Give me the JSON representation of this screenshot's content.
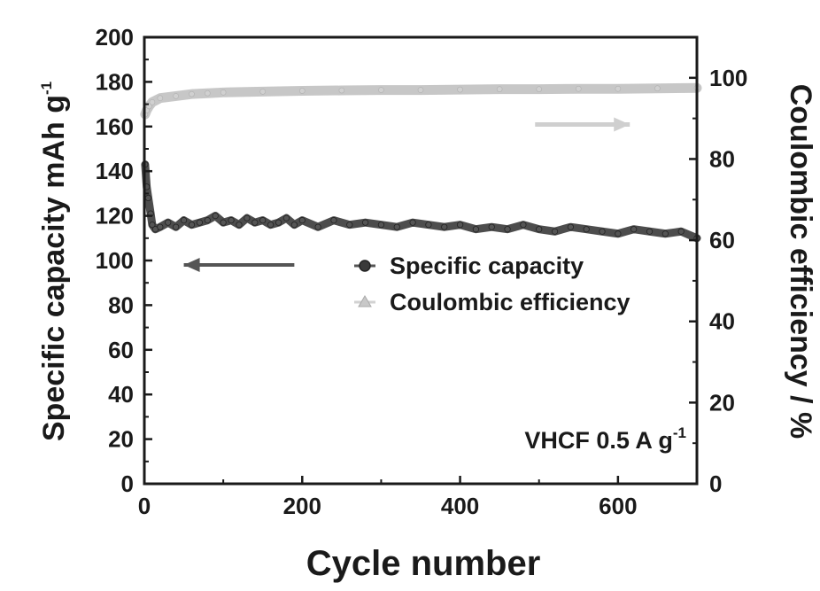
{
  "chart_data": {
    "type": "line",
    "title": "",
    "xlabel": "Cycle number",
    "ylabel": {
      "text": "Specific capacity mAh g",
      "sup": "-1"
    },
    "y2label": "Coulombic efficiency / %",
    "xlim": [
      0,
      700
    ],
    "ylim": [
      0,
      200
    ],
    "y2lim": [
      0,
      110
    ],
    "xticks": [
      0,
      200,
      400,
      600
    ],
    "yticks": [
      0,
      20,
      40,
      60,
      80,
      100,
      120,
      140,
      160,
      180,
      200
    ],
    "y2ticks": [
      0,
      20,
      40,
      60,
      80,
      100
    ],
    "grid": false,
    "legend_position": "center-right",
    "annotation": {
      "text": "VHCF   0.5 A g",
      "sup": "-1"
    },
    "series": [
      {
        "name": "Specific capacity",
        "axis": "left",
        "color": "#3a3a3a",
        "x": [
          1,
          3,
          5,
          8,
          10,
          14,
          20,
          30,
          40,
          50,
          60,
          70,
          80,
          90,
          100,
          110,
          120,
          130,
          140,
          150,
          160,
          170,
          180,
          190,
          200,
          220,
          240,
          260,
          280,
          300,
          320,
          340,
          360,
          380,
          400,
          420,
          440,
          460,
          480,
          500,
          520,
          540,
          560,
          580,
          600,
          620,
          640,
          660,
          680,
          700
        ],
        "values": [
          143,
          133,
          128,
          121,
          116,
          114,
          115,
          117,
          115,
          118,
          116,
          117,
          118,
          120,
          117,
          118,
          116,
          119,
          117,
          118,
          116,
          117,
          119,
          116,
          118,
          115,
          118,
          116,
          117,
          116,
          115,
          117,
          116,
          115,
          116,
          114,
          115,
          114,
          116,
          114,
          113,
          115,
          114,
          113,
          112,
          114,
          113,
          112,
          113,
          110
        ]
      },
      {
        "name": "Coulombic efficiency",
        "axis": "right",
        "color": "#bdbdbd",
        "x": [
          1,
          3,
          6,
          10,
          20,
          40,
          60,
          80,
          100,
          150,
          200,
          250,
          300,
          350,
          400,
          450,
          500,
          550,
          600,
          650,
          700
        ],
        "values": [
          91,
          92,
          93,
          94,
          95,
          95.5,
          96,
          96.2,
          96.4,
          96.6,
          96.8,
          96.9,
          97,
          97,
          97.1,
          97.2,
          97.2,
          97.3,
          97.3,
          97.4,
          97.5
        ]
      }
    ],
    "direction_arrows": [
      {
        "series": "Specific capacity",
        "points_to": "left",
        "x_from": 190,
        "x_to": 50,
        "y": 98
      },
      {
        "series": "Coulombic efficiency",
        "points_to": "right",
        "x_from": 495,
        "x_to": 615,
        "y2": 88.5
      }
    ]
  }
}
